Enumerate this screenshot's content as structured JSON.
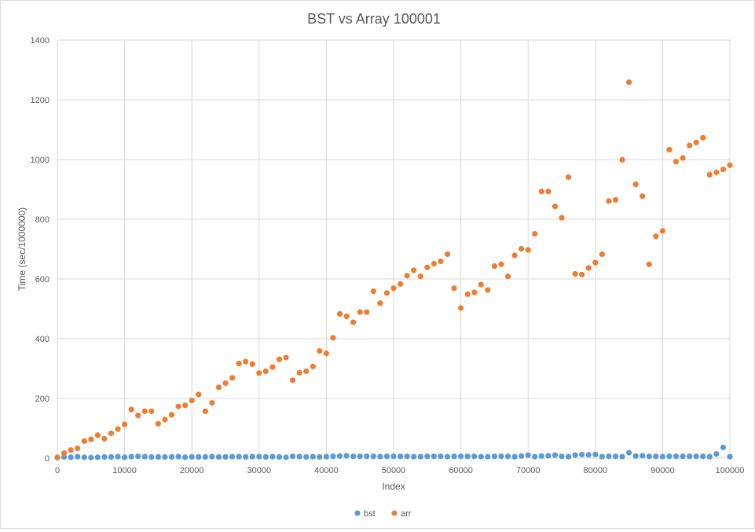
{
  "chart_data": {
    "type": "scatter",
    "title": "BST vs Array 100001",
    "xlabel": "Index",
    "ylabel": "Time (sec/1000000)",
    "xlim": [
      0,
      100000
    ],
    "ylim": [
      0,
      1400
    ],
    "xticks": [
      0,
      10000,
      20000,
      30000,
      40000,
      50000,
      60000,
      70000,
      80000,
      90000,
      100000
    ],
    "yticks": [
      0,
      200,
      400,
      600,
      800,
      1000,
      1200,
      1400
    ],
    "grid": true,
    "legend_position": "bottom",
    "x": [
      0,
      1000,
      2000,
      3000,
      4000,
      5000,
      6000,
      7000,
      8000,
      9000,
      10000,
      11000,
      12000,
      13000,
      14000,
      15000,
      16000,
      17000,
      18000,
      19000,
      20000,
      21000,
      22000,
      23000,
      24000,
      25000,
      26000,
      27000,
      28000,
      29000,
      30000,
      31000,
      32000,
      33000,
      34000,
      35000,
      36000,
      37000,
      38000,
      39000,
      40000,
      41000,
      42000,
      43000,
      44000,
      45000,
      46000,
      47000,
      48000,
      49000,
      50000,
      51000,
      52000,
      53000,
      54000,
      55000,
      56000,
      57000,
      58000,
      59000,
      60000,
      61000,
      62000,
      63000,
      64000,
      65000,
      66000,
      67000,
      68000,
      69000,
      70000,
      71000,
      72000,
      73000,
      74000,
      75000,
      76000,
      77000,
      78000,
      79000,
      80000,
      81000,
      82000,
      83000,
      84000,
      85000,
      86000,
      87000,
      88000,
      89000,
      90000,
      91000,
      92000,
      93000,
      94000,
      95000,
      96000,
      97000,
      98000,
      99000,
      100000
    ],
    "series": [
      {
        "name": "bst",
        "color": "#5b9bd5",
        "values": [
          2,
          4,
          3,
          5,
          3,
          2,
          3,
          4,
          4,
          5,
          3,
          5,
          6,
          5,
          4,
          4,
          4,
          4,
          5,
          3,
          4,
          4,
          4,
          5,
          4,
          4,
          5,
          5,
          4,
          5,
          5,
          4,
          5,
          4,
          3,
          6,
          5,
          4,
          5,
          4,
          5,
          6,
          7,
          8,
          6,
          6,
          6,
          6,
          5,
          6,
          6,
          6,
          6,
          5,
          5,
          6,
          6,
          6,
          5,
          6,
          6,
          6,
          6,
          5,
          5,
          6,
          6,
          6,
          5,
          7,
          10,
          5,
          7,
          8,
          10,
          6,
          5,
          10,
          12,
          11,
          12,
          5,
          6,
          6,
          5,
          18,
          7,
          8,
          6,
          6,
          5,
          6,
          6,
          6,
          6,
          6,
          6,
          5,
          14,
          36,
          5
        ]
      },
      {
        "name": "arr",
        "color": "#ed7d31",
        "values": [
          3,
          17,
          27,
          33,
          57,
          63,
          77,
          65,
          83,
          97,
          113,
          163,
          143,
          157,
          157,
          115,
          129,
          145,
          173,
          177,
          193,
          213,
          157,
          185,
          237,
          251,
          269,
          317,
          323,
          315,
          285,
          291,
          305,
          331,
          337,
          261,
          286,
          291,
          307,
          359,
          351,
          403,
          483,
          475,
          455,
          489,
          489,
          559,
          519,
          553,
          569,
          583,
          611,
          629,
          609,
          639,
          651,
          659,
          683,
          569,
          503,
          549,
          555,
          581,
          563,
          643,
          649,
          609,
          679,
          701,
          697,
          751,
          893,
          893,
          843,
          805,
          941,
          617,
          615,
          637,
          655,
          683,
          861,
          865,
          999,
          1259,
          917,
          877,
          649,
          743,
          761,
          1033,
          993,
          1005,
          1047,
          1057,
          1073,
          949,
          957,
          967,
          981
        ]
      }
    ]
  }
}
